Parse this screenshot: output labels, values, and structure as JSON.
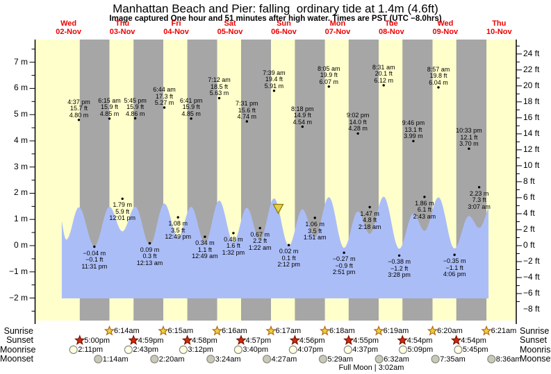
{
  "title": "Manhattan Beach and Pier: falling  ordinary tide at 1.4m (4.6ft)",
  "subtitle": "Image captured One hour and 51 minutes after high water. Times are PST (UTC −8.0hrs)",
  "colors": {
    "day_band": "#ffffcb",
    "night_band": "#a6a6a6",
    "tide_area": "#abbdf7",
    "day_label": "#ee0000",
    "sunrise_star_fill": "#ecd23c",
    "sunrise_star_stroke": "#b3681a",
    "sunset_star_fill": "#d42a0a",
    "sunset_star_stroke": "#7a1000",
    "moonrise_fill": "#ffffe0",
    "moonset_fill": "#c9c9b6",
    "moon_stroke": "#8a8a8a",
    "marker_fill": "#e6cf4e",
    "marker_stroke": "#8f7a00"
  },
  "chart_data": {
    "type": "area",
    "title": "Manhattan Beach and Pier: falling  ordinary tide at 1.4m (4.6ft)",
    "x_axis_days": [
      {
        "dow": "Wed",
        "date": "02-Nov"
      },
      {
        "dow": "Thu",
        "date": "03-Nov"
      },
      {
        "dow": "Fri",
        "date": "04-Nov"
      },
      {
        "dow": "Sat",
        "date": "05-Nov"
      },
      {
        "dow": "Sun",
        "date": "06-Nov"
      },
      {
        "dow": "Mon",
        "date": "07-Nov"
      },
      {
        "dow": "Tue",
        "date": "08-Nov"
      },
      {
        "dow": "Wed",
        "date": "09-Nov"
      },
      {
        "dow": "Thu",
        "date": "10-Nov"
      }
    ],
    "y_axis_left": {
      "unit": "m",
      "ticks": [
        {
          "v": 7,
          "label": "7 m"
        },
        {
          "v": 6,
          "label": "6 m"
        },
        {
          "v": 5,
          "label": "5 m"
        },
        {
          "v": 4,
          "label": "4 m"
        },
        {
          "v": 3,
          "label": "3 m"
        },
        {
          "v": 2,
          "label": "2 m"
        },
        {
          "v": 1,
          "label": "1 m"
        },
        {
          "v": 0,
          "label": "0 m"
        },
        {
          "v": -1,
          "label": "−1 m"
        },
        {
          "v": -2,
          "label": "−2 m"
        }
      ]
    },
    "y_axis_right": {
      "unit": "ft",
      "ticks": [
        {
          "v": 24,
          "label": "24 ft"
        },
        {
          "v": 22,
          "label": "22 ft"
        },
        {
          "v": 20,
          "label": "20 ft"
        },
        {
          "v": 18,
          "label": "18 ft"
        },
        {
          "v": 16,
          "label": "16 ft"
        },
        {
          "v": 14,
          "label": "14 ft"
        },
        {
          "v": 12,
          "label": "12 ft"
        },
        {
          "v": 10,
          "label": "10 ft"
        },
        {
          "v": 8,
          "label": "8 ft"
        },
        {
          "v": 6,
          "label": "6 ft"
        },
        {
          "v": 4,
          "label": "4 ft"
        },
        {
          "v": 2,
          "label": "2 ft"
        },
        {
          "v": 0,
          "label": "0 ft"
        },
        {
          "v": -2,
          "label": "−2 ft"
        },
        {
          "v": -4,
          "label": "−4 ft"
        },
        {
          "v": -6,
          "label": "−6 ft"
        },
        {
          "v": -8,
          "label": "−8 ft"
        }
      ]
    },
    "extremes": [
      {
        "kind": "H",
        "time": "4:37 pm",
        "ft": "15.7",
        "m": "4.80",
        "t": 16.62
      },
      {
        "kind": "L",
        "m": "−0.04",
        "ft": "−0.1",
        "time": "11:31 pm",
        "t": 23.52
      },
      {
        "kind": "H",
        "time": "6:15 am",
        "ft": "15.9",
        "m": "4.85",
        "t": 30.25
      },
      {
        "kind": "L",
        "m": "1.79",
        "ft": "5.9",
        "time": "12:01 pm",
        "t": 36.02
      },
      {
        "kind": "H",
        "time": "5:45 pm",
        "ft": "15.9",
        "m": "4.86",
        "t": 41.75
      },
      {
        "kind": "L",
        "m": "0.09",
        "ft": "0.3",
        "time": "12:13 am",
        "t": 48.22
      },
      {
        "kind": "H",
        "time": "6:44 am",
        "ft": "17.3",
        "m": "5.27",
        "t": 54.73
      },
      {
        "kind": "L",
        "m": "1.08",
        "ft": "3.5",
        "time": "12:49 pm",
        "t": 60.82
      },
      {
        "kind": "H",
        "time": "6:41 pm",
        "ft": "15.9",
        "m": "4.85",
        "t": 66.68
      },
      {
        "kind": "L",
        "m": "0.34",
        "ft": "1.1",
        "time": "12:49 am",
        "t": 72.82
      },
      {
        "kind": "H",
        "time": "7:12 am",
        "ft": "18.5",
        "m": "5.63",
        "t": 79.2
      },
      {
        "kind": "L",
        "m": "0.48",
        "ft": "1.6",
        "time": "1:32 pm",
        "t": 85.53
      },
      {
        "kind": "H",
        "time": "7:31 pm",
        "ft": "15.6",
        "m": "4.74",
        "t": 91.52
      },
      {
        "kind": "L",
        "m": "0.67",
        "ft": "2.2",
        "time": "1:22 am",
        "t": 97.37
      },
      {
        "kind": "H",
        "time": "7:39 am",
        "ft": "19.4",
        "m": "5.91",
        "t": 103.65
      },
      {
        "kind": "L",
        "m": "0.02",
        "ft": "0.1",
        "time": "2:12 pm",
        "t": 110.2
      },
      {
        "kind": "H",
        "time": "8:18 pm",
        "ft": "14.9",
        "m": "4.54",
        "t": 116.3
      },
      {
        "kind": "L",
        "m": "1.06",
        "ft": "3.5",
        "time": "1:51 am",
        "t": 121.85
      },
      {
        "kind": "H",
        "time": "8:05 am",
        "ft": "19.9",
        "m": "6.07",
        "t": 128.08
      },
      {
        "kind": "L",
        "m": "−0.27",
        "ft": "−0.9",
        "time": "2:51 pm",
        "t": 134.85
      },
      {
        "kind": "H",
        "time": "9:02 pm",
        "ft": "14.0",
        "m": "4.28",
        "t": 141.03
      },
      {
        "kind": "L",
        "m": "1.47",
        "ft": "4.8",
        "time": "2:18 am",
        "t": 146.3
      },
      {
        "kind": "H",
        "time": "8:31 am",
        "ft": "20.1",
        "m": "6.12",
        "t": 152.52
      },
      {
        "kind": "L",
        "m": "−0.38",
        "ft": "−1.2",
        "time": "3:28 pm",
        "t": 159.47
      },
      {
        "kind": "H",
        "time": "9:46 pm",
        "ft": "13.1",
        "m": "3.99",
        "t": 165.77
      },
      {
        "kind": "L",
        "m": "1.86",
        "ft": "6.1",
        "time": "2:43 am",
        "t": 170.72
      },
      {
        "kind": "H",
        "time": "8:57 am",
        "ft": "19.8",
        "m": "6.04",
        "t": 176.95
      },
      {
        "kind": "L",
        "m": "−0.35",
        "ft": "−1.1",
        "time": "4:06 pm",
        "t": 184.1
      },
      {
        "kind": "H",
        "time": "10:33 pm",
        "ft": "12.1",
        "m": "3.70",
        "t": 190.55
      },
      {
        "kind": "L",
        "m": "2.23",
        "ft": "7.3",
        "time": "3:07 am",
        "t": 195.12
      }
    ],
    "marker": {
      "level_m": "1.4",
      "t": 105.5
    },
    "astro": {
      "sunrise": {
        "label": "Sunrise",
        "events": [
          {
            "time": "6:14am",
            "t": 30.23
          },
          {
            "time": "6:15am",
            "t": 54.25
          },
          {
            "time": "6:16am",
            "t": 78.27
          },
          {
            "time": "6:17am",
            "t": 102.28
          },
          {
            "time": "6:18am",
            "t": 126.3
          },
          {
            "time": "6:19am",
            "t": 150.32
          },
          {
            "time": "6:20am",
            "t": 174.33
          },
          {
            "time": "6:21am",
            "t": 198.35
          }
        ]
      },
      "sunset": {
        "label": "Sunset",
        "events": [
          {
            "time": "5:00pm",
            "t": 17.0
          },
          {
            "time": "4:59pm",
            "t": 40.98
          },
          {
            "time": "4:58pm",
            "t": 64.97
          },
          {
            "time": "4:57pm",
            "t": 88.95
          },
          {
            "time": "4:56pm",
            "t": 112.93
          },
          {
            "time": "4:55pm",
            "t": 136.92
          },
          {
            "time": "4:54pm",
            "t": 160.9
          },
          {
            "time": "4:54pm",
            "t": 184.9
          }
        ]
      },
      "moonrise": {
        "label": "Moonrise",
        "events": [
          {
            "time": "2:11pm",
            "t": 14.18
          },
          {
            "time": "2:43pm",
            "t": 38.72
          },
          {
            "time": "3:12pm",
            "t": 63.2
          },
          {
            "time": "3:40pm",
            "t": 87.67
          },
          {
            "time": "4:07pm",
            "t": 112.12
          },
          {
            "time": "4:37pm",
            "t": 136.62
          },
          {
            "time": "5:09pm",
            "t": 161.15
          },
          {
            "time": "5:45pm",
            "t": 185.75
          }
        ]
      },
      "moonset": {
        "label": "Moonset",
        "events": [
          {
            "time": "1:14am",
            "t": 25.23
          },
          {
            "time": "2:20am",
            "t": 50.33
          },
          {
            "time": "3:24am",
            "t": 75.4
          },
          {
            "time": "4:27am",
            "t": 100.45
          },
          {
            "time": "5:29am",
            "t": 125.48
          },
          {
            "time": "6:32am",
            "t": 150.53
          },
          {
            "time": "7:35am",
            "t": 175.58
          },
          {
            "time": "8:36am",
            "t": 200.6
          }
        ]
      },
      "full_moon": {
        "text": "Full Moon | 3:02am",
        "t": 147.03
      }
    }
  }
}
